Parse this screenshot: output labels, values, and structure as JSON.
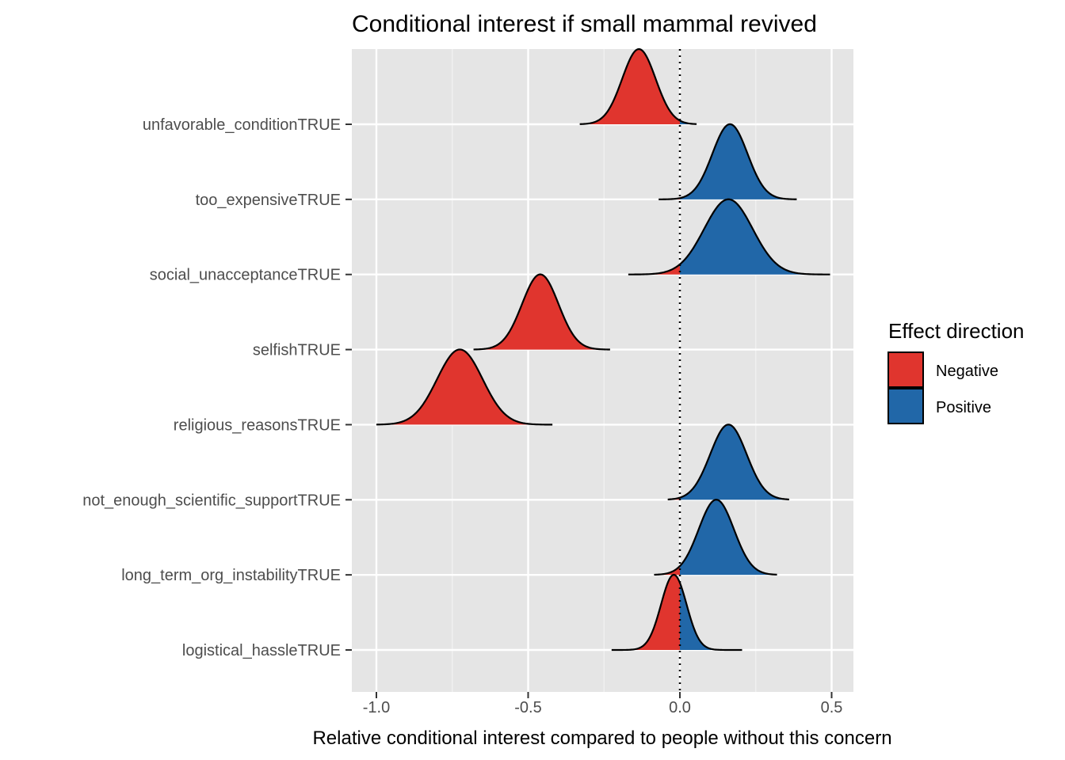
{
  "chart_data": {
    "type": "ridgeline",
    "title": "Conditional interest if small mammal revived",
    "xlabel": "Relative conditional interest compared to people without this concern",
    "ylabel": "",
    "xlim": [
      -1.08,
      0.57
    ],
    "x_ticks": [
      -1.0,
      -0.5,
      0.0,
      0.5
    ],
    "x_tick_labels": [
      "-1.0",
      "-0.5",
      "0.0",
      "0.5"
    ],
    "reference_line_x": 0,
    "grid": true,
    "legend": {
      "title": "Effect direction",
      "position": "right",
      "entries": [
        {
          "label": "Negative",
          "color": "#E0352E"
        },
        {
          "label": "Positive",
          "color": "#2167A8"
        }
      ]
    },
    "categories": [
      "unfavorable_conditionTRUE",
      "too_expensiveTRUE",
      "social_unacceptanceTRUE",
      "selfishTRUE",
      "religious_reasonsTRUE",
      "not_enough_scientific_supportTRUE",
      "long_term_org_instabilityTRUE",
      "logistical_hassleTRUE"
    ],
    "distributions": [
      {
        "category": "unfavorable_conditionTRUE",
        "mode": -0.135,
        "sd": 0.055,
        "min": -0.33,
        "max": 0.055
      },
      {
        "category": "too_expensiveTRUE",
        "mode": 0.165,
        "sd": 0.058,
        "min": -0.07,
        "max": 0.385
      },
      {
        "category": "social_unacceptanceTRUE",
        "mode": 0.16,
        "sd": 0.08,
        "min": -0.17,
        "max": 0.495
      },
      {
        "category": "selfishTRUE",
        "mode": -0.46,
        "sd": 0.06,
        "min": -0.68,
        "max": -0.23
      },
      {
        "category": "religious_reasonsTRUE",
        "mode": -0.725,
        "sd": 0.075,
        "min": -1.0,
        "max": -0.42
      },
      {
        "category": "not_enough_scientific_supportTRUE",
        "mode": 0.16,
        "sd": 0.06,
        "min": -0.04,
        "max": 0.36
      },
      {
        "category": "long_term_org_instabilityTRUE",
        "mode": 0.12,
        "sd": 0.058,
        "min": -0.085,
        "max": 0.32
      },
      {
        "category": "logistical_hassleTRUE",
        "mode": -0.02,
        "sd": 0.042,
        "min": -0.225,
        "max": 0.205
      }
    ]
  }
}
